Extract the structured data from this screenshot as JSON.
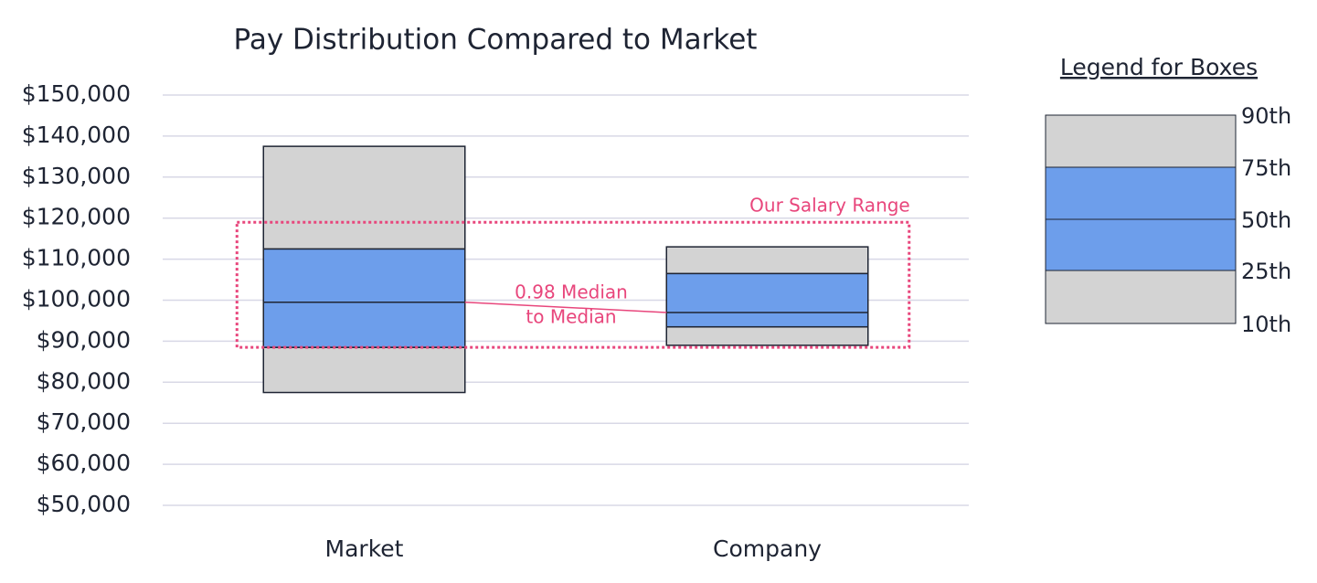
{
  "chart_data": {
    "type": "box",
    "title": "Pay Distribution Compared to Market",
    "categories": [
      "Market",
      "Company"
    ],
    "series": [
      {
        "name": "10th",
        "values": [
          77500,
          89000
        ]
      },
      {
        "name": "25th",
        "values": [
          88500,
          93500
        ]
      },
      {
        "name": "50th",
        "values": [
          99500,
          97000
        ]
      },
      {
        "name": "75th",
        "values": [
          112500,
          106500
        ]
      },
      {
        "name": "90th",
        "values": [
          137500,
          113000
        ]
      }
    ],
    "outer_color": "#d3d3d3",
    "inner_color": "#6d9eeb",
    "ylim": [
      50000,
      150000
    ],
    "yticks": [
      {
        "value": 50000,
        "label": "$50,000"
      },
      {
        "value": 60000,
        "label": "$60,000"
      },
      {
        "value": 70000,
        "label": "$70,000"
      },
      {
        "value": 80000,
        "label": "$80,000"
      },
      {
        "value": 90000,
        "label": "$90,000"
      },
      {
        "value": 100000,
        "label": "$100,000"
      },
      {
        "value": 110000,
        "label": "$110,000"
      },
      {
        "value": 120000,
        "label": "$120,000"
      },
      {
        "value": 130000,
        "label": "$130,000"
      },
      {
        "value": 140000,
        "label": "$140,000"
      },
      {
        "value": 150000,
        "label": "$150,000"
      }
    ],
    "grid": true,
    "salary_range": {
      "label": "Our Salary Range",
      "low": 88500,
      "high": 119000,
      "color": "#e8467c"
    },
    "median_annotation": {
      "lines": [
        "0.98 Median",
        "to Median"
      ],
      "color": "#e8467c"
    },
    "legend": {
      "title": "Legend for Boxes"
    }
  }
}
